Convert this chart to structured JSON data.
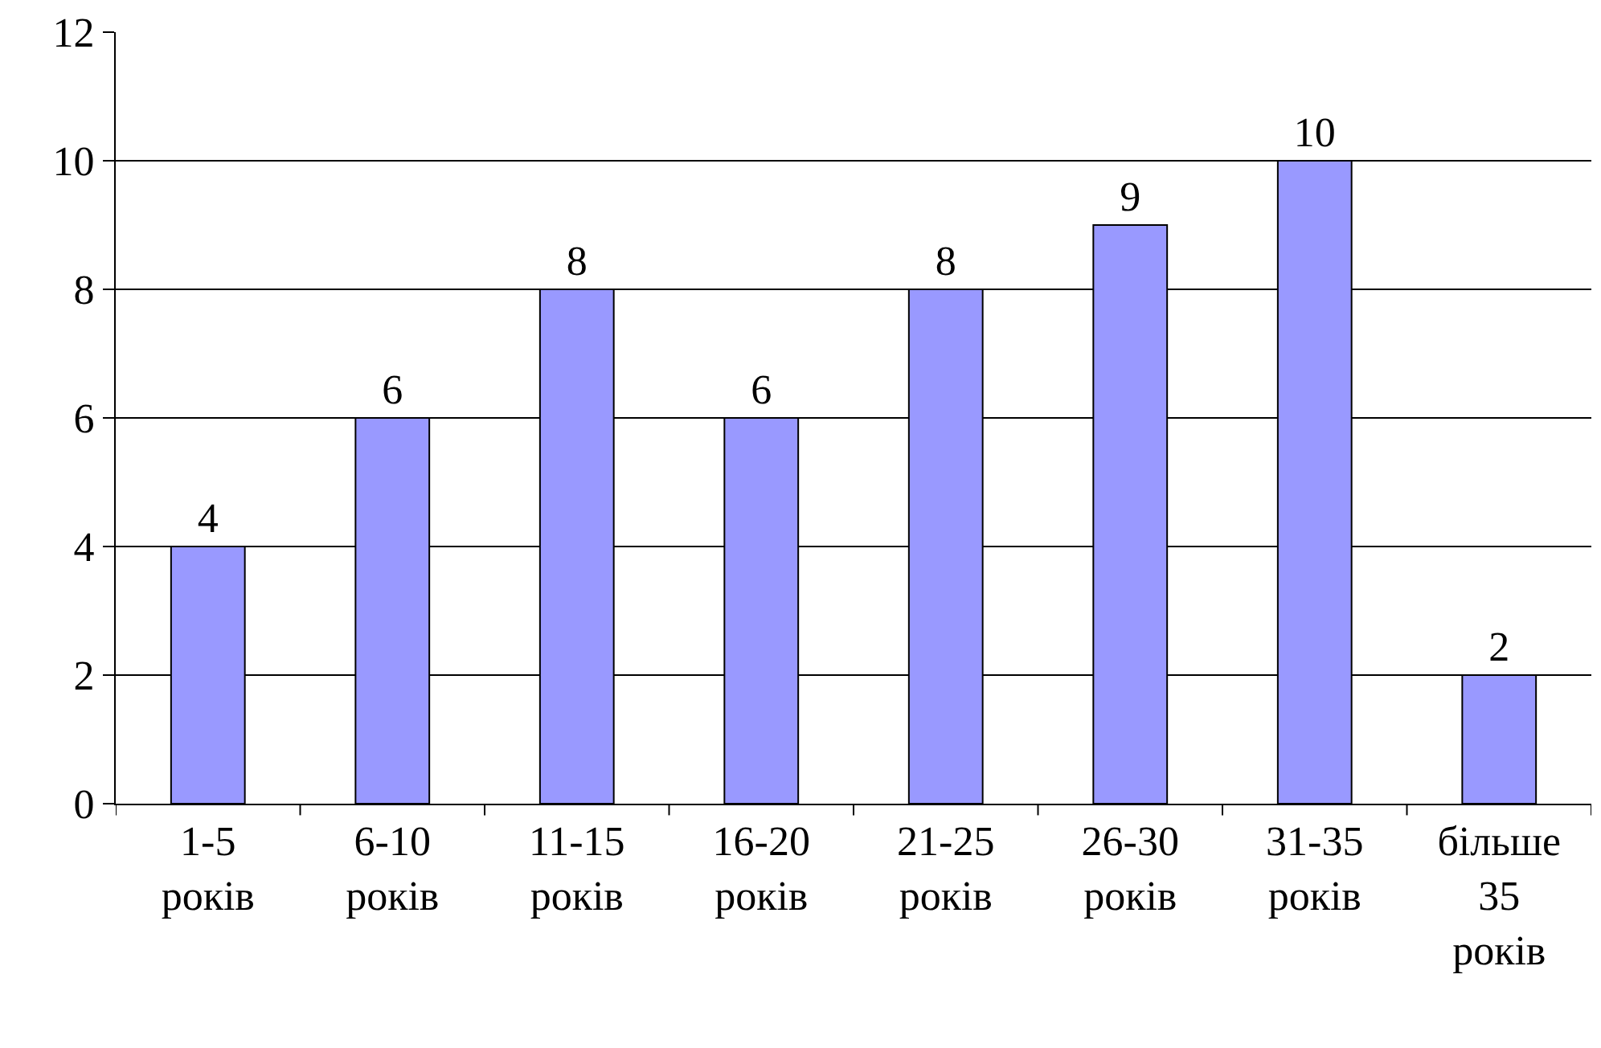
{
  "chart_data": {
    "type": "bar",
    "categories": [
      "1-5 років",
      "6-10 років",
      "11-15 років",
      "16-20 років",
      "21-25 років",
      "26-30 років",
      "31-35 років",
      "більше 35 років"
    ],
    "values": [
      4,
      6,
      8,
      6,
      8,
      9,
      10,
      2
    ],
    "color": "#9999ff",
    "ylim": [
      0,
      12
    ],
    "yticks": [
      0,
      2,
      4,
      6,
      8,
      10,
      12
    ],
    "grid": "y",
    "data_labels": true,
    "legend": false
  }
}
